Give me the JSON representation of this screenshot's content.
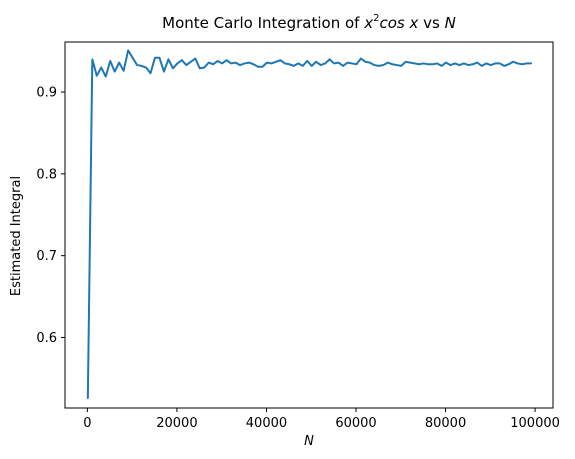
{
  "chart_data": {
    "type": "line",
    "title": {
      "prefix": "Monte Carlo Integration of ",
      "math_base": "x",
      "math_exp": "2",
      "math_rest": "cos x",
      "suffix": " vs ",
      "var": "N"
    },
    "xlabel": "N",
    "ylabel": "Estimated Integral",
    "xlim": [
      -5000,
      104000
    ],
    "ylim": [
      0.5138,
      0.9612
    ],
    "xticks": [
      0,
      20000,
      40000,
      60000,
      80000,
      100000
    ],
    "xtick_labels": [
      "0",
      "20000",
      "40000",
      "60000",
      "80000",
      "100000"
    ],
    "yticks": [
      0.6,
      0.7,
      0.8,
      0.9
    ],
    "ytick_labels": [
      "0.6",
      "0.7",
      "0.8",
      "0.9"
    ],
    "grid": false,
    "series": [
      {
        "color": "#1f77b4",
        "x": [
          100,
          1100,
          2100,
          3100,
          4100,
          5100,
          6100,
          7100,
          8100,
          9100,
          10100,
          11100,
          12100,
          13100,
          14100,
          15100,
          16100,
          17100,
          18100,
          19100,
          20100,
          21100,
          22100,
          23100,
          24100,
          25100,
          26100,
          27100,
          28100,
          29100,
          30100,
          31100,
          32100,
          33100,
          34100,
          35100,
          36100,
          37100,
          38100,
          39100,
          40100,
          41100,
          42100,
          43100,
          44100,
          45100,
          46100,
          47100,
          48100,
          49100,
          50100,
          51100,
          52100,
          53100,
          54100,
          55100,
          56100,
          57100,
          58100,
          59100,
          60100,
          61100,
          62100,
          63100,
          64100,
          65100,
          66100,
          67100,
          68100,
          69100,
          70100,
          71100,
          72100,
          73100,
          74100,
          75100,
          76100,
          77100,
          78100,
          79100,
          80100,
          81100,
          82100,
          83100,
          84100,
          85100,
          86100,
          87100,
          88100,
          89100,
          90100,
          91100,
          92100,
          93100,
          94100,
          95100,
          96100,
          97100,
          98100,
          99100
        ],
        "values": [
          0.526,
          0.94,
          0.92,
          0.93,
          0.919,
          0.938,
          0.925,
          0.936,
          0.926,
          0.951,
          0.942,
          0.933,
          0.932,
          0.93,
          0.923,
          0.942,
          0.942,
          0.925,
          0.94,
          0.929,
          0.935,
          0.939,
          0.933,
          0.937,
          0.941,
          0.929,
          0.93,
          0.936,
          0.934,
          0.938,
          0.935,
          0.939,
          0.935,
          0.936,
          0.933,
          0.935,
          0.936,
          0.934,
          0.931,
          0.931,
          0.936,
          0.935,
          0.937,
          0.939,
          0.935,
          0.934,
          0.932,
          0.935,
          0.932,
          0.938,
          0.932,
          0.937,
          0.933,
          0.935,
          0.94,
          0.935,
          0.936,
          0.932,
          0.936,
          0.935,
          0.934,
          0.941,
          0.937,
          0.936,
          0.933,
          0.932,
          0.933,
          0.936,
          0.934,
          0.933,
          0.932,
          0.937,
          0.936,
          0.935,
          0.934,
          0.935,
          0.934,
          0.934,
          0.935,
          0.932,
          0.936,
          0.933,
          0.935,
          0.933,
          0.935,
          0.933,
          0.934,
          0.936,
          0.932,
          0.935,
          0.933,
          0.935,
          0.935,
          0.932,
          0.934,
          0.937,
          0.935,
          0.934,
          0.935,
          0.935
        ]
      }
    ]
  }
}
